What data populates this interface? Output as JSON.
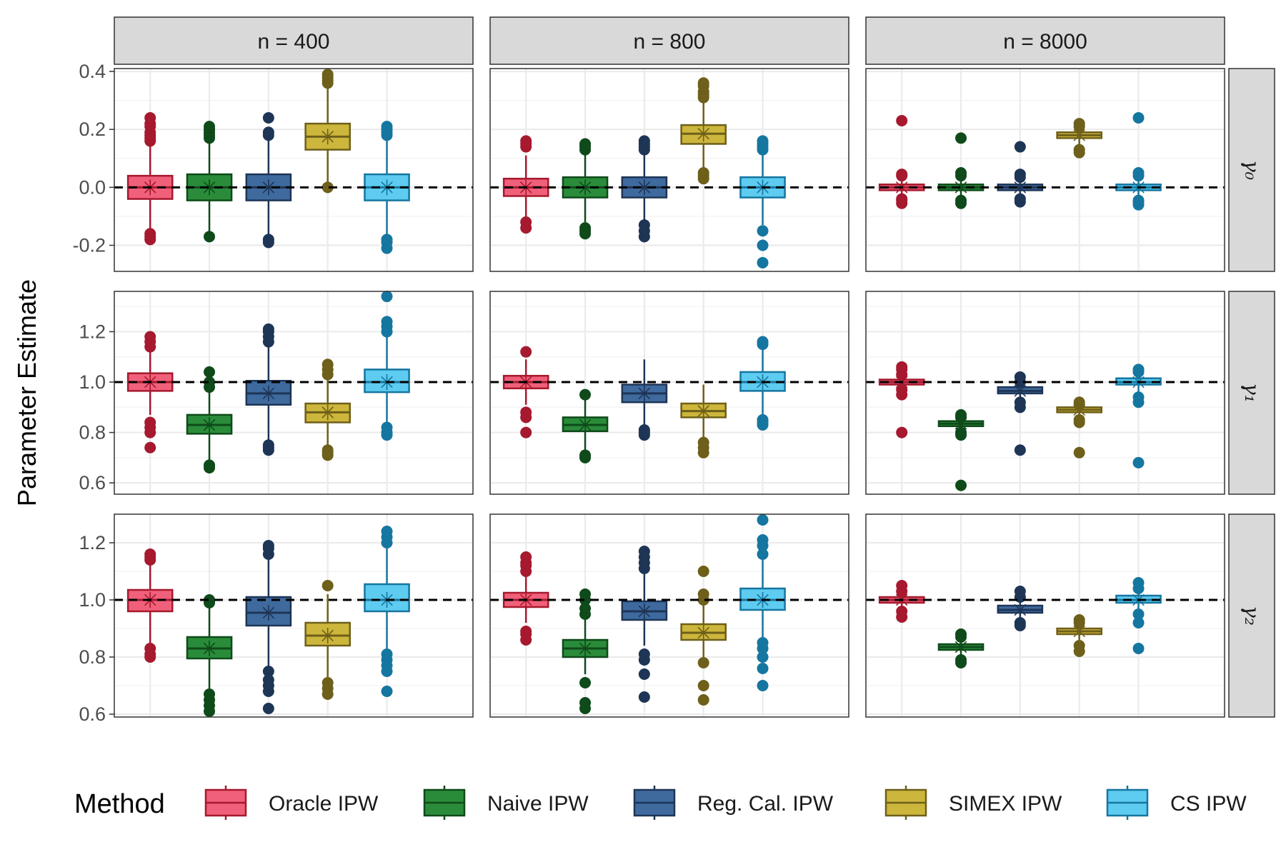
{
  "chart_data": {
    "type": "box",
    "ylabel": "Parameter Estimate",
    "legend_title": "Method",
    "legend_position": "bottom",
    "grid": true,
    "facet_cols": [
      "n = 400",
      "n = 800",
      "n = 8000"
    ],
    "facet_rows": [
      {
        "label": "γ₀",
        "ylim": [
          -0.29,
          0.41
        ],
        "ticks": [
          "-0.2",
          "0.0",
          "0.2",
          "0.4"
        ],
        "tick_values": [
          -0.2,
          0.0,
          0.2,
          0.4
        ],
        "truth": 0.0
      },
      {
        "label": "γ₁",
        "ylim": [
          0.555,
          1.36
        ],
        "ticks": [
          "0.6",
          "0.8",
          "1.0",
          "1.2"
        ],
        "tick_values": [
          0.6,
          0.8,
          1.0,
          1.2
        ],
        "truth": 1.0
      },
      {
        "label": "γ₂",
        "ylim": [
          0.59,
          1.3
        ],
        "ticks": [
          "0.6",
          "0.8",
          "1.0",
          "1.2"
        ],
        "tick_values": [
          0.6,
          0.8,
          1.0,
          1.2
        ],
        "truth": 1.0
      }
    ],
    "methods": [
      {
        "name": "Oracle IPW",
        "fill": "#F0607A",
        "stroke": "#A6192E"
      },
      {
        "name": "Naive IPW",
        "fill": "#2A8C3A",
        "stroke": "#0F4A1A"
      },
      {
        "name": "Reg. Cal. IPW",
        "fill": "#3E6A9E",
        "stroke": "#1E3556"
      },
      {
        "name": "SIMEX IPW",
        "fill": "#CDB63C",
        "stroke": "#6E5F1A"
      },
      {
        "name": "CS IPW",
        "fill": "#5ECBF0",
        "stroke": "#1576A0"
      }
    ],
    "boxes": [
      [
        [
          {
            "q1": -0.04,
            "median": 0.0,
            "q3": 0.04,
            "wlo": -0.15,
            "whi": 0.15,
            "mean": 0.0,
            "outliers": [
              -0.18,
              -0.17,
              -0.16,
              0.16,
              0.17,
              0.18,
              0.19,
              0.21,
              0.22,
              0.24
            ]
          },
          {
            "q1": -0.045,
            "median": 0.0,
            "q3": 0.045,
            "wlo": -0.16,
            "whi": 0.16,
            "mean": 0.0,
            "outliers": [
              -0.17,
              0.17,
              0.18,
              0.19,
              0.2,
              0.21
            ]
          },
          {
            "q1": -0.045,
            "median": 0.0,
            "q3": 0.045,
            "wlo": -0.17,
            "whi": 0.17,
            "mean": 0.0,
            "outliers": [
              -0.19,
              -0.18,
              0.18,
              0.19,
              0.24
            ]
          },
          {
            "q1": 0.13,
            "median": 0.175,
            "q3": 0.22,
            "wlo": 0.0,
            "whi": 0.35,
            "mean": 0.175,
            "outliers": [
              0.0,
              0.36,
              0.37,
              0.38,
              0.39
            ]
          },
          {
            "q1": -0.045,
            "median": 0.0,
            "q3": 0.045,
            "wlo": -0.17,
            "whi": 0.17,
            "mean": 0.0,
            "outliers": [
              -0.21,
              -0.19,
              -0.18,
              0.18,
              0.19,
              0.2,
              0.21
            ]
          }
        ],
        [
          {
            "q1": -0.03,
            "median": 0.0,
            "q3": 0.03,
            "wlo": -0.11,
            "whi": 0.11,
            "mean": 0.0,
            "outliers": [
              -0.14,
              -0.12,
              0.14,
              0.15,
              0.16
            ]
          },
          {
            "q1": -0.035,
            "median": 0.0,
            "q3": 0.035,
            "wlo": -0.12,
            "whi": 0.12,
            "mean": 0.0,
            "outliers": [
              -0.16,
              -0.15,
              -0.14,
              0.13,
              0.14,
              0.15
            ]
          },
          {
            "q1": -0.035,
            "median": 0.0,
            "q3": 0.035,
            "wlo": -0.12,
            "whi": 0.12,
            "mean": 0.0,
            "outliers": [
              -0.17,
              -0.15,
              -0.13,
              0.13,
              0.14,
              0.15,
              0.16
            ]
          },
          {
            "q1": 0.15,
            "median": 0.185,
            "q3": 0.215,
            "wlo": 0.06,
            "whi": 0.3,
            "mean": 0.185,
            "outliers": [
              0.03,
              0.04,
              0.05,
              0.31,
              0.32,
              0.33,
              0.35,
              0.36
            ]
          },
          {
            "q1": -0.035,
            "median": 0.0,
            "q3": 0.035,
            "wlo": -0.13,
            "whi": 0.13,
            "mean": 0.0,
            "outliers": [
              -0.26,
              -0.2,
              -0.15,
              0.13,
              0.14,
              0.15,
              0.16
            ]
          }
        ],
        [
          {
            "q1": -0.01,
            "median": 0.0,
            "q3": 0.01,
            "wlo": -0.035,
            "whi": 0.035,
            "mean": 0.0,
            "outliers": [
              -0.055,
              -0.045,
              -0.04,
              0.04,
              0.045,
              0.23
            ]
          },
          {
            "q1": -0.01,
            "median": 0.0,
            "q3": 0.01,
            "wlo": -0.035,
            "whi": 0.035,
            "mean": 0.0,
            "outliers": [
              -0.055,
              -0.045,
              0.04,
              0.05,
              0.17
            ]
          },
          {
            "q1": -0.01,
            "median": 0.0,
            "q3": 0.01,
            "wlo": -0.035,
            "whi": 0.035,
            "mean": 0.0,
            "outliers": [
              -0.05,
              -0.04,
              0.035,
              0.045,
              0.14
            ]
          },
          {
            "q1": 0.17,
            "median": 0.18,
            "q3": 0.19,
            "wlo": 0.14,
            "whi": 0.21,
            "mean": 0.18,
            "outliers": [
              0.12,
              0.13,
              0.21,
              0.22
            ]
          },
          {
            "q1": -0.01,
            "median": 0.0,
            "q3": 0.01,
            "wlo": -0.035,
            "whi": 0.035,
            "mean": 0.0,
            "outliers": [
              -0.06,
              -0.05,
              -0.045,
              0.04,
              0.05,
              0.24
            ]
          }
        ]
      ],
      [
        [
          {
            "q1": 0.965,
            "median": 1.0,
            "q3": 1.035,
            "wlo": 0.87,
            "whi": 1.13,
            "mean": 1.0,
            "outliers": [
              0.74,
              0.8,
              0.82,
              0.84,
              1.14,
              1.16,
              1.18
            ]
          },
          {
            "q1": 0.795,
            "median": 0.83,
            "q3": 0.87,
            "wlo": 0.69,
            "whi": 0.97,
            "mean": 0.83,
            "outliers": [
              0.66,
              0.67,
              0.98,
              1.0,
              1.04
            ]
          },
          {
            "q1": 0.91,
            "median": 0.955,
            "q3": 1.005,
            "wlo": 0.77,
            "whi": 1.14,
            "mean": 0.955,
            "outliers": [
              0.73,
              0.74,
              0.75,
              1.16,
              1.18,
              1.2,
              1.21
            ]
          },
          {
            "q1": 0.84,
            "median": 0.88,
            "q3": 0.915,
            "wlo": 0.74,
            "whi": 1.01,
            "mean": 0.88,
            "outliers": [
              0.71,
              0.72,
              0.73,
              1.03,
              1.05,
              1.07
            ]
          },
          {
            "q1": 0.96,
            "median": 1.0,
            "q3": 1.05,
            "wlo": 0.83,
            "whi": 1.18,
            "mean": 1.0,
            "outliers": [
              0.79,
              0.8,
              0.82,
              1.2,
              1.22,
              1.24,
              1.34
            ]
          }
        ],
        [
          {
            "q1": 0.975,
            "median": 1.0,
            "q3": 1.025,
            "wlo": 0.91,
            "whi": 1.09,
            "mean": 1.0,
            "outliers": [
              0.8,
              0.86,
              0.88,
              1.12
            ]
          },
          {
            "q1": 0.805,
            "median": 0.83,
            "q3": 0.86,
            "wlo": 0.73,
            "whi": 0.93,
            "mean": 0.83,
            "outliers": [
              0.7,
              0.71,
              0.95
            ]
          },
          {
            "q1": 0.92,
            "median": 0.955,
            "q3": 0.99,
            "wlo": 0.83,
            "whi": 1.09,
            "mean": 0.955,
            "outliers": [
              0.79,
              0.8,
              0.81
            ]
          },
          {
            "q1": 0.86,
            "median": 0.885,
            "q3": 0.915,
            "wlo": 0.78,
            "whi": 0.99,
            "mean": 0.885,
            "outliers": [
              0.72,
              0.74,
              0.76
            ]
          },
          {
            "q1": 0.965,
            "median": 1.0,
            "q3": 1.04,
            "wlo": 0.87,
            "whi": 1.13,
            "mean": 1.0,
            "outliers": [
              0.83,
              0.84,
              0.85,
              1.15,
              1.16
            ]
          }
        ],
        [
          {
            "q1": 0.99,
            "median": 1.0,
            "q3": 1.01,
            "wlo": 0.97,
            "whi": 1.03,
            "mean": 1.0,
            "outliers": [
              0.8,
              0.95,
              0.97,
              1.03,
              1.05,
              1.06
            ]
          },
          {
            "q1": 0.825,
            "median": 0.835,
            "q3": 0.845,
            "wlo": 0.8,
            "whi": 0.87,
            "mean": 0.835,
            "outliers": [
              0.59,
              0.79,
              0.8,
              0.86,
              0.87
            ]
          },
          {
            "q1": 0.955,
            "median": 0.965,
            "q3": 0.98,
            "wlo": 0.93,
            "whi": 1.0,
            "mean": 0.965,
            "outliers": [
              0.73,
              0.9,
              0.92,
              1.0,
              1.02
            ]
          },
          {
            "q1": 0.88,
            "median": 0.89,
            "q3": 0.9,
            "wlo": 0.86,
            "whi": 0.92,
            "mean": 0.89,
            "outliers": [
              0.72,
              0.84,
              0.85,
              0.91,
              0.92
            ]
          },
          {
            "q1": 0.99,
            "median": 1.0,
            "q3": 1.015,
            "wlo": 0.96,
            "whi": 1.04,
            "mean": 1.0,
            "outliers": [
              0.68,
              0.92,
              0.94,
              1.04,
              1.05
            ]
          }
        ]
      ],
      [
        [
          {
            "q1": 0.96,
            "median": 1.0,
            "q3": 1.035,
            "wlo": 0.85,
            "whi": 1.13,
            "mean": 1.0,
            "outliers": [
              0.8,
              0.81,
              0.83,
              1.14,
              1.15,
              1.16
            ]
          },
          {
            "q1": 0.795,
            "median": 0.83,
            "q3": 0.87,
            "wlo": 0.69,
            "whi": 0.97,
            "mean": 0.83,
            "outliers": [
              0.61,
              0.63,
              0.65,
              0.67,
              0.99,
              1.0
            ]
          },
          {
            "q1": 0.91,
            "median": 0.955,
            "q3": 1.01,
            "wlo": 0.77,
            "whi": 1.14,
            "mean": 0.955,
            "outliers": [
              0.62,
              0.68,
              0.7,
              0.72,
              0.75,
              1.16,
              1.18,
              1.19
            ]
          },
          {
            "q1": 0.84,
            "median": 0.875,
            "q3": 0.92,
            "wlo": 0.73,
            "whi": 1.02,
            "mean": 0.875,
            "outliers": [
              0.67,
              0.69,
              0.71,
              1.05
            ]
          },
          {
            "q1": 0.96,
            "median": 1.0,
            "q3": 1.055,
            "wlo": 0.83,
            "whi": 1.18,
            "mean": 1.0,
            "outliers": [
              0.68,
              0.75,
              0.77,
              0.79,
              0.81,
              1.2,
              1.22,
              1.24
            ]
          }
        ],
        [
          {
            "q1": 0.975,
            "median": 1.0,
            "q3": 1.025,
            "wlo": 0.92,
            "whi": 1.08,
            "mean": 1.0,
            "outliers": [
              0.86,
              0.88,
              0.89,
              1.1,
              1.12,
              1.13,
              1.15
            ]
          },
          {
            "q1": 0.8,
            "median": 0.83,
            "q3": 0.86,
            "wlo": 0.74,
            "whi": 0.93,
            "mean": 0.83,
            "outliers": [
              0.62,
              0.64,
              0.71,
              0.95,
              0.97,
              1.0,
              1.02
            ]
          },
          {
            "q1": 0.93,
            "median": 0.96,
            "q3": 0.995,
            "wlo": 0.84,
            "whi": 1.09,
            "mean": 0.96,
            "outliers": [
              0.66,
              0.74,
              0.79,
              0.81,
              1.11,
              1.13,
              1.15,
              1.17
            ]
          },
          {
            "q1": 0.86,
            "median": 0.885,
            "q3": 0.915,
            "wlo": 0.8,
            "whi": 0.99,
            "mean": 0.885,
            "outliers": [
              0.65,
              0.7,
              0.78,
              1.0,
              1.02,
              1.1
            ]
          },
          {
            "q1": 0.965,
            "median": 1.0,
            "q3": 1.04,
            "wlo": 0.87,
            "whi": 1.14,
            "mean": 1.0,
            "outliers": [
              0.7,
              0.76,
              0.8,
              0.83,
              0.85,
              1.16,
              1.19,
              1.21,
              1.28
            ]
          }
        ],
        [
          {
            "q1": 0.99,
            "median": 1.0,
            "q3": 1.01,
            "wlo": 0.97,
            "whi": 1.03,
            "mean": 1.0,
            "outliers": [
              0.94,
              0.96,
              1.03,
              1.05
            ]
          },
          {
            "q1": 0.825,
            "median": 0.835,
            "q3": 0.845,
            "wlo": 0.8,
            "whi": 0.87,
            "mean": 0.835,
            "outliers": [
              0.78,
              0.79,
              0.87,
              0.88
            ]
          },
          {
            "q1": 0.955,
            "median": 0.965,
            "q3": 0.98,
            "wlo": 0.93,
            "whi": 1.0,
            "mean": 0.965,
            "outliers": [
              0.91,
              0.92,
              1.01,
              1.03
            ]
          },
          {
            "q1": 0.88,
            "median": 0.89,
            "q3": 0.9,
            "wlo": 0.86,
            "whi": 0.92,
            "mean": 0.89,
            "outliers": [
              0.82,
              0.84,
              0.92,
              0.93
            ]
          },
          {
            "q1": 0.99,
            "median": 1.0,
            "q3": 1.015,
            "wlo": 0.96,
            "whi": 1.04,
            "mean": 1.0,
            "outliers": [
              0.83,
              0.92,
              0.95,
              1.04,
              1.06
            ]
          }
        ]
      ]
    ]
  }
}
